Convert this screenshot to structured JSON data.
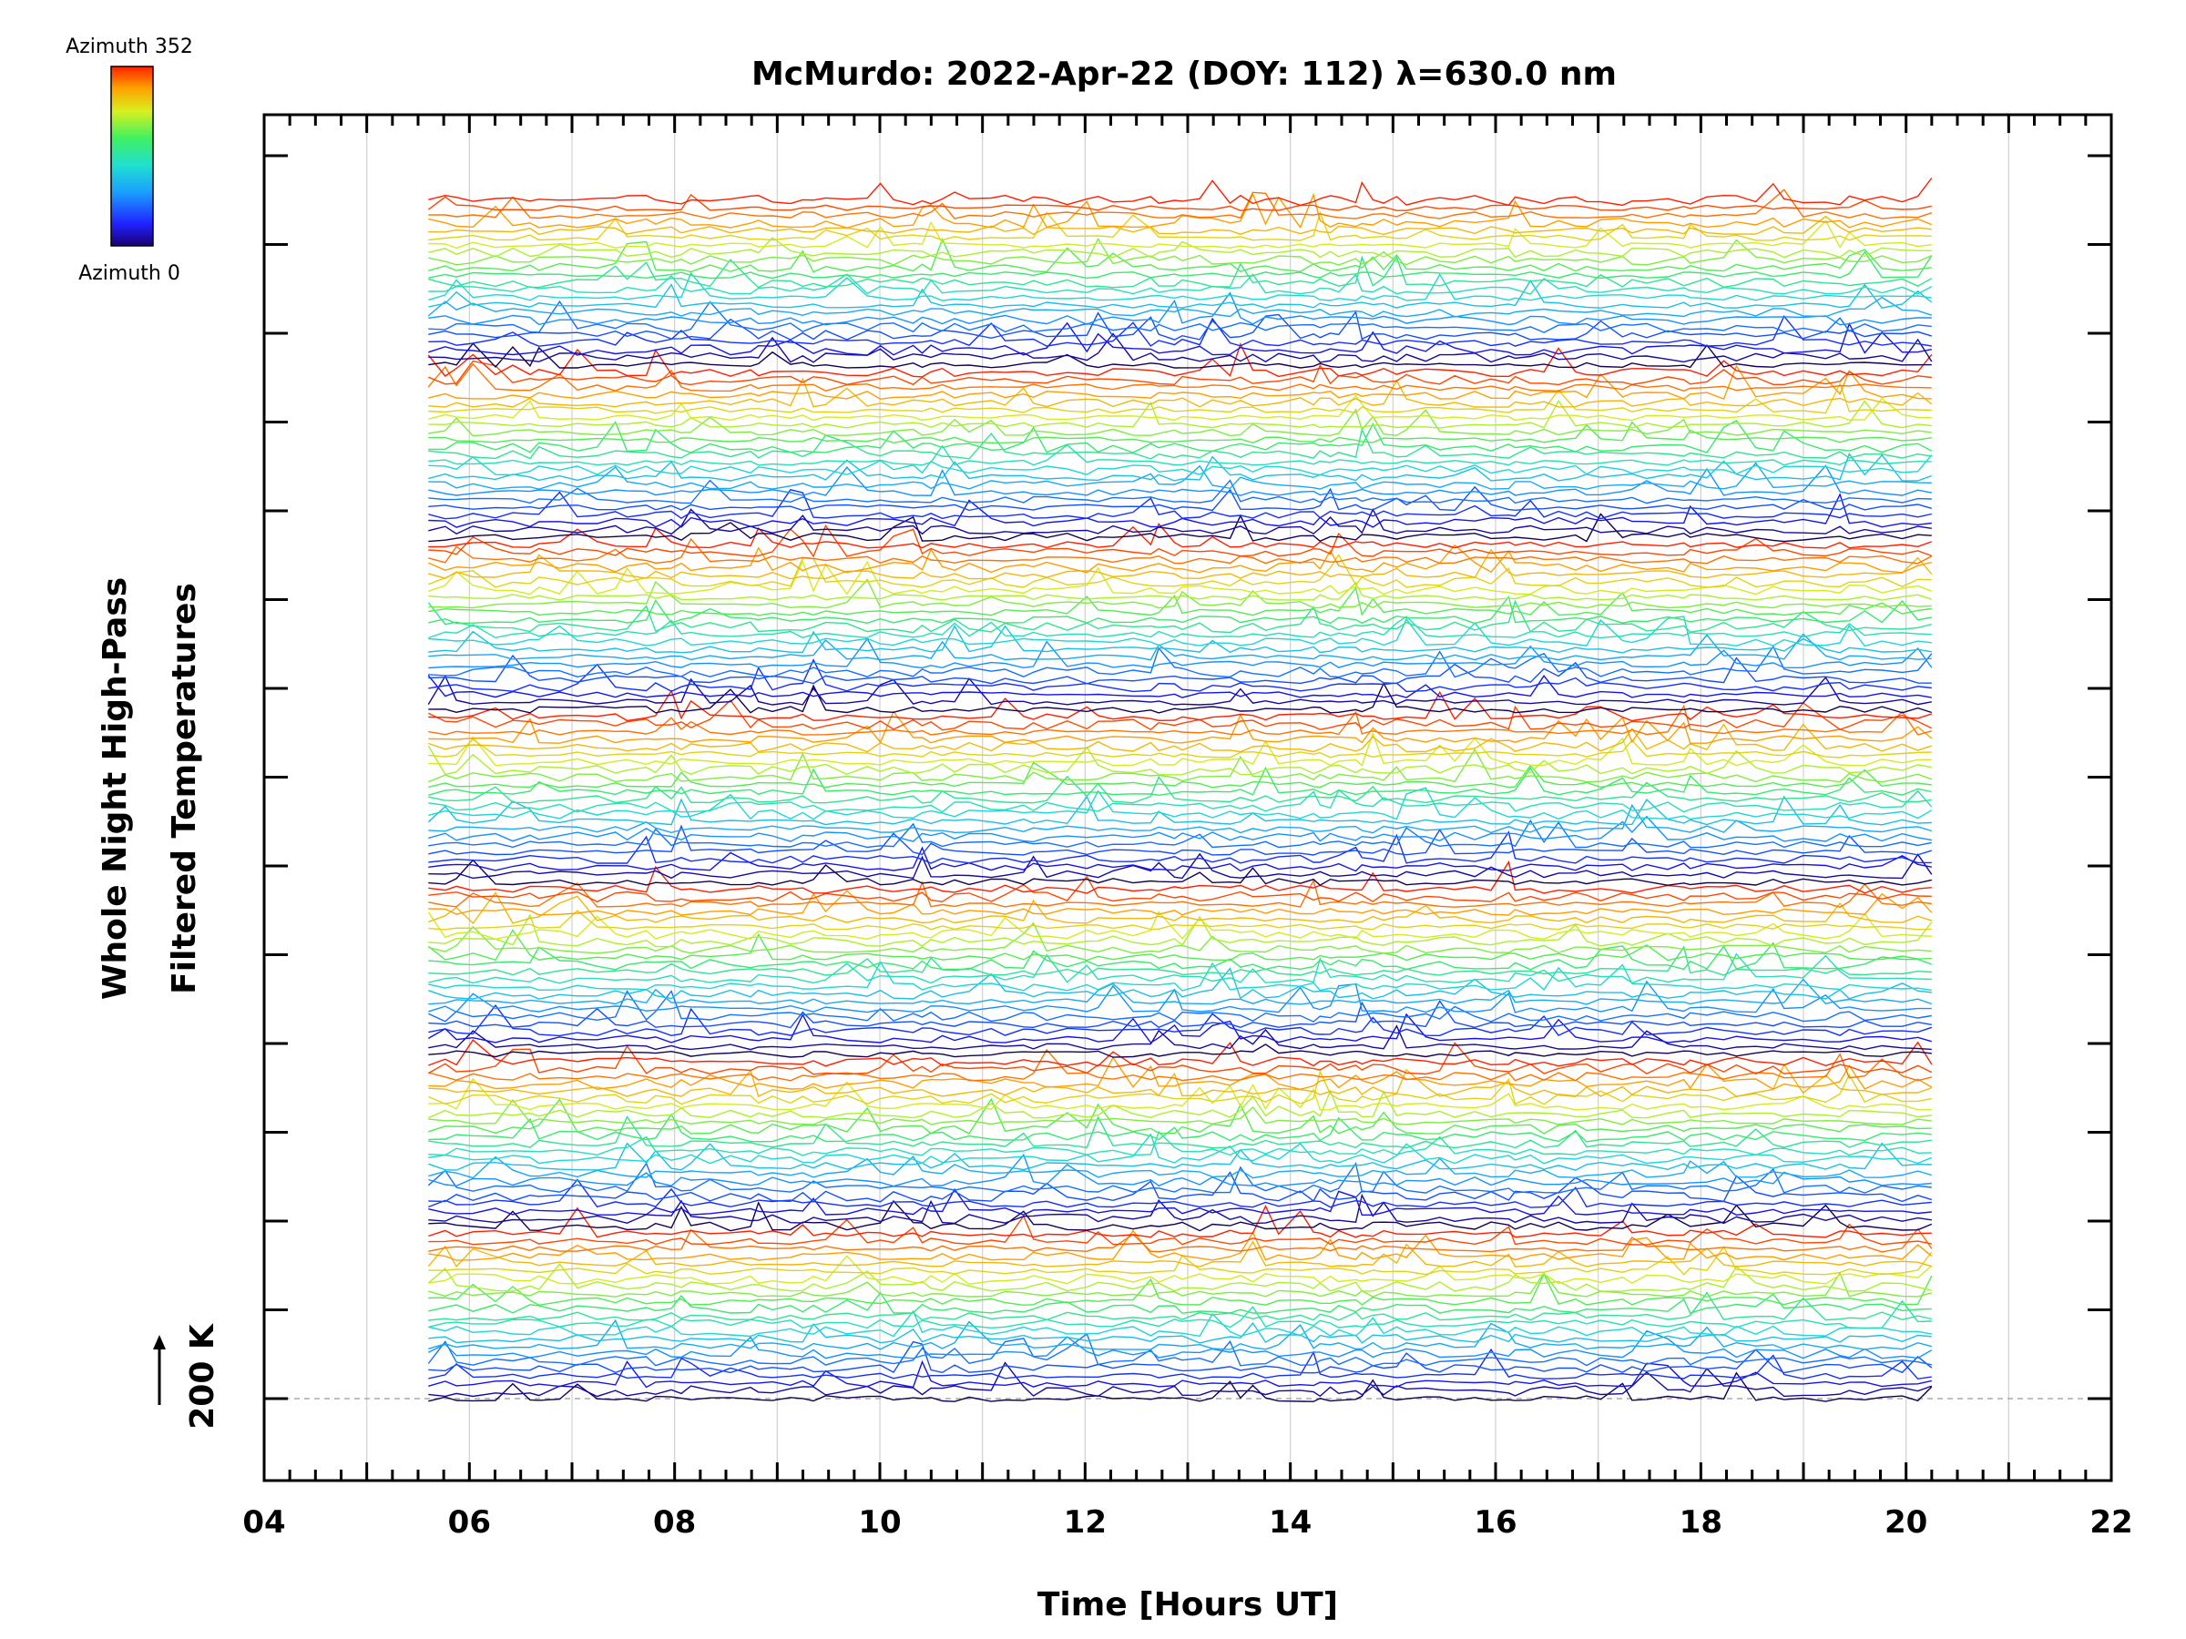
{
  "chart_data": {
    "type": "line",
    "title": "McMurdo: 2022-Apr-22 (DOY: 112) λ=630.0 nm",
    "xlabel": "Time [Hours UT]",
    "ylabel_line1": "Whole Night High-Pass",
    "ylabel_line2": "Filtered Temperatures",
    "scale_label": "200 K",
    "xlim": [
      4,
      22
    ],
    "x_ticks": [
      "04",
      "06",
      "08",
      "10",
      "12",
      "14",
      "16",
      "18",
      "20",
      "22"
    ],
    "x_tick_values": [
      4,
      6,
      8,
      10,
      12,
      14,
      16,
      18,
      20,
      22
    ],
    "time_range": [
      5.6,
      20.25
    ],
    "colorbar": {
      "top_label": "Azimuth 352",
      "bottom_label": "Azimuth 0",
      "azimuth_min": 0,
      "azimuth_max": 352
    },
    "grid": true,
    "series_groups": 7,
    "series_per_group": 23,
    "series_count": 161,
    "baseline_dashed": true,
    "colors": {
      "grid": "#d0d0d0",
      "baseline": "#aaaaaa",
      "axis": "#000000"
    }
  }
}
